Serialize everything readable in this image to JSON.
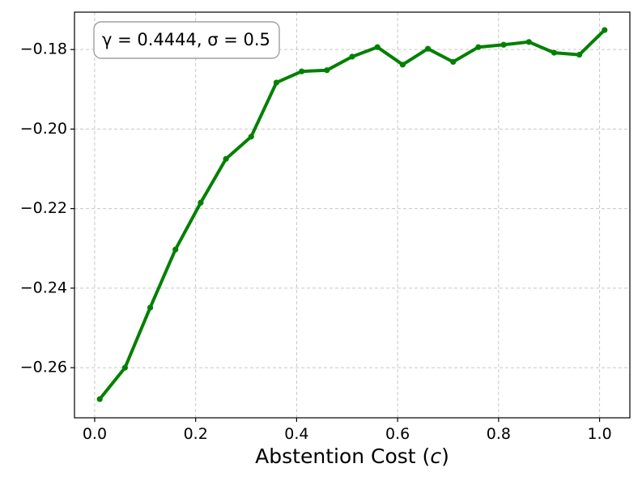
{
  "chart_data": {
    "type": "line",
    "title": "",
    "xlabel": "Abstention Cost (c)",
    "xlabel_parts": {
      "prefix": "Abstention Cost (",
      "var": "c",
      "suffix": ")"
    },
    "ylabel": "",
    "xlim": [
      -0.04,
      1.06
    ],
    "ylim": [
      -0.2726,
      -0.1706
    ],
    "x_ticks": [
      0.0,
      0.2,
      0.4,
      0.6,
      0.8,
      1.0
    ],
    "x_tick_labels": [
      "0.0",
      "0.2",
      "0.4",
      "0.6",
      "0.8",
      "1.0"
    ],
    "y_ticks": [
      -0.26,
      -0.24,
      -0.22,
      -0.2,
      -0.18
    ],
    "y_tick_labels": [
      "−0.26",
      "−0.24",
      "−0.22",
      "−0.20",
      "−0.18"
    ],
    "grid": true,
    "series": [
      {
        "color": "#008000",
        "x": [
          0.01,
          0.06,
          0.11,
          0.16,
          0.21,
          0.26,
          0.31,
          0.36,
          0.41,
          0.46,
          0.51,
          0.56,
          0.61,
          0.66,
          0.71,
          0.76,
          0.81,
          0.86,
          0.91,
          0.96,
          1.01
        ],
        "y": [
          -0.2679,
          -0.26,
          -0.2449,
          -0.2303,
          -0.2185,
          -0.2075,
          -0.2019,
          -0.1883,
          -0.1855,
          -0.1852,
          -0.1818,
          -0.1794,
          -0.1838,
          -0.1798,
          -0.1831,
          -0.1794,
          -0.1788,
          -0.1781,
          -0.1808,
          -0.1813,
          -0.1751
        ]
      }
    ],
    "annotation": {
      "text": "γ = 0.4444, σ = 0.5",
      "placement": "top-left"
    }
  }
}
